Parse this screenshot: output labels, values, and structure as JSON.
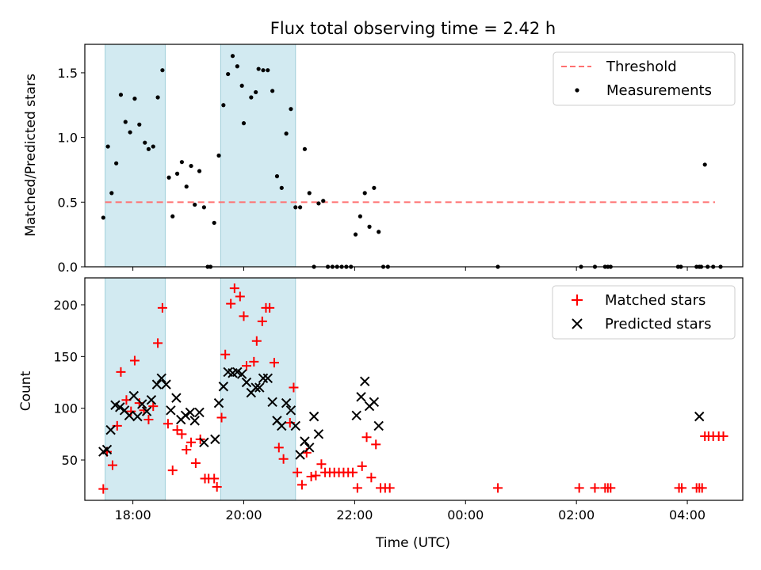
{
  "title": "Flux total observing time = 2.42 h",
  "xlabel": "Time (UTC)",
  "x_ticks": [
    "18:00",
    "20:00",
    "22:00",
    "00:00",
    "02:00",
    "04:00"
  ],
  "colors": {
    "threshold": "#ff7070",
    "measurement": "#000000",
    "matched": "#ff0000",
    "predicted": "#000000",
    "shade": "#add8e6"
  },
  "chart_data": [
    {
      "type": "scatter",
      "ylabel": "Matched/Predicted stars",
      "ylim": [
        0,
        1.72
      ],
      "y_ticks": [
        "0.0",
        "0.5",
        "1.0",
        "1.5"
      ],
      "xlim": [
        "17:08",
        "05:00"
      ],
      "shaded_intervals": [
        [
          "17:30",
          "18:35"
        ],
        [
          "19:35",
          "20:56"
        ]
      ],
      "legend": {
        "placement": "upper right",
        "entries": [
          "Threshold",
          "Measurements"
        ]
      },
      "series": [
        {
          "name": "Threshold",
          "kind": "dashed-line",
          "x": [
            "17:30",
            "04:30"
          ],
          "y": [
            0.5,
            0.5
          ]
        },
        {
          "name": "Measurements",
          "kind": "points",
          "points": [
            [
              "17:28",
              0.38
            ],
            [
              "17:33",
              0.93
            ],
            [
              "17:37",
              0.57
            ],
            [
              "17:42",
              0.8
            ],
            [
              "17:47",
              1.33
            ],
            [
              "17:52",
              1.12
            ],
            [
              "17:57",
              1.04
            ],
            [
              "18:02",
              1.3
            ],
            [
              "18:07",
              1.1
            ],
            [
              "18:13",
              0.96
            ],
            [
              "18:17",
              0.91
            ],
            [
              "18:22",
              0.93
            ],
            [
              "18:27",
              1.31
            ],
            [
              "18:32",
              1.52
            ],
            [
              "18:39",
              0.69
            ],
            [
              "18:43",
              0.39
            ],
            [
              "18:48",
              0.72
            ],
            [
              "18:53",
              0.81
            ],
            [
              "18:58",
              0.62
            ],
            [
              "19:03",
              0.78
            ],
            [
              "19:07",
              0.48
            ],
            [
              "19:12",
              0.74
            ],
            [
              "19:17",
              0.46
            ],
            [
              "19:21",
              0.0
            ],
            [
              "19:24",
              0.0
            ],
            [
              "19:28",
              0.34
            ],
            [
              "19:33",
              0.86
            ],
            [
              "19:38",
              1.25
            ],
            [
              "19:43",
              1.49
            ],
            [
              "19:48",
              1.63
            ],
            [
              "19:53",
              1.55
            ],
            [
              "19:58",
              1.4
            ],
            [
              "20:00",
              1.11
            ],
            [
              "20:08",
              1.31
            ],
            [
              "20:13",
              1.35
            ],
            [
              "20:16",
              1.53
            ],
            [
              "20:21",
              1.52
            ],
            [
              "20:26",
              1.52
            ],
            [
              "20:31",
              1.36
            ],
            [
              "20:36",
              0.7
            ],
            [
              "20:41",
              0.61
            ],
            [
              "20:46",
              1.03
            ],
            [
              "20:51",
              1.22
            ],
            [
              "20:56",
              0.46
            ],
            [
              "21:01",
              0.46
            ],
            [
              "21:06",
              0.91
            ],
            [
              "21:11",
              0.57
            ],
            [
              "21:16",
              0.0
            ],
            [
              "21:21",
              0.49
            ],
            [
              "21:26",
              0.51
            ],
            [
              "21:31",
              0.0
            ],
            [
              "21:36",
              0.0
            ],
            [
              "21:41",
              0.0
            ],
            [
              "21:46",
              0.0
            ],
            [
              "21:51",
              0.0
            ],
            [
              "21:56",
              0.0
            ],
            [
              "22:01",
              0.25
            ],
            [
              "22:06",
              0.39
            ],
            [
              "22:11",
              0.57
            ],
            [
              "22:16",
              0.31
            ],
            [
              "22:21",
              0.61
            ],
            [
              "22:26",
              0.27
            ],
            [
              "22:31",
              0.0
            ],
            [
              "22:36",
              0.0
            ],
            [
              "00:35",
              0.0
            ],
            [
              "02:05",
              0.0
            ],
            [
              "02:20",
              0.0
            ],
            [
              "02:31",
              0.0
            ],
            [
              "02:34",
              0.0
            ],
            [
              "02:37",
              0.0
            ],
            [
              "03:50",
              0.0
            ],
            [
              "03:53",
              0.0
            ],
            [
              "04:10",
              0.0
            ],
            [
              "04:13",
              0.0
            ],
            [
              "04:15",
              0.0
            ],
            [
              "04:19",
              0.79
            ],
            [
              "04:22",
              0.0
            ],
            [
              "04:28",
              0.0
            ],
            [
              "04:36",
              0.0
            ]
          ]
        }
      ]
    },
    {
      "type": "scatter",
      "ylabel": "Count",
      "ylim": [
        11,
        226
      ],
      "y_ticks": [
        "50",
        "100",
        "150",
        "200"
      ],
      "xlim": [
        "17:08",
        "05:00"
      ],
      "shaded_intervals": [
        [
          "17:30",
          "18:35"
        ],
        [
          "19:35",
          "20:56"
        ]
      ],
      "legend": {
        "placement": "upper right",
        "entries": [
          "Matched stars",
          "Predicted stars"
        ]
      },
      "series": [
        {
          "name": "Matched stars",
          "marker": "plus",
          "points": [
            [
              "17:28",
              22
            ],
            [
              "17:32",
              58
            ],
            [
              "17:38",
              45
            ],
            [
              "17:43",
              83
            ],
            [
              "17:47",
              135
            ],
            [
              "17:53",
              108
            ],
            [
              "17:58",
              97
            ],
            [
              "18:02",
              146
            ],
            [
              "18:07",
              105
            ],
            [
              "18:12",
              98
            ],
            [
              "18:17",
              89
            ],
            [
              "18:22",
              102
            ],
            [
              "18:27",
              163
            ],
            [
              "18:32",
              197
            ],
            [
              "18:38",
              85
            ],
            [
              "18:43",
              40
            ],
            [
              "18:48",
              79
            ],
            [
              "18:53",
              75
            ],
            [
              "18:58",
              60
            ],
            [
              "19:03",
              67
            ],
            [
              "19:08",
              47
            ],
            [
              "19:13",
              70
            ],
            [
              "19:18",
              32
            ],
            [
              "19:22",
              32
            ],
            [
              "19:28",
              32
            ],
            [
              "19:31",
              24
            ],
            [
              "19:36",
              91
            ],
            [
              "19:40",
              152
            ],
            [
              "19:46",
              201
            ],
            [
              "19:50",
              216
            ],
            [
              "19:56",
              208
            ],
            [
              "20:00",
              189
            ],
            [
              "20:03",
              141
            ],
            [
              "20:11",
              145
            ],
            [
              "20:14",
              165
            ],
            [
              "20:20",
              184
            ],
            [
              "20:24",
              197
            ],
            [
              "20:28",
              197
            ],
            [
              "20:33",
              144
            ],
            [
              "20:38",
              62
            ],
            [
              "20:43",
              51
            ],
            [
              "20:50",
              86
            ],
            [
              "20:54",
              120
            ],
            [
              "20:58",
              38
            ],
            [
              "21:03",
              26
            ],
            [
              "21:08",
              57
            ],
            [
              "21:13",
              34
            ],
            [
              "21:18",
              35
            ],
            [
              "21:24",
              46
            ],
            [
              "21:28",
              38
            ],
            [
              "21:33",
              38
            ],
            [
              "21:38",
              38
            ],
            [
              "21:43",
              38
            ],
            [
              "21:48",
              38
            ],
            [
              "21:53",
              38
            ],
            [
              "21:58",
              38
            ],
            [
              "22:03",
              23
            ],
            [
              "22:08",
              44
            ],
            [
              "22:13",
              72
            ],
            [
              "22:18",
              33
            ],
            [
              "22:23",
              65
            ],
            [
              "22:28",
              23
            ],
            [
              "22:33",
              23
            ],
            [
              "22:38",
              23
            ],
            [
              "00:35",
              23
            ],
            [
              "02:03",
              23
            ],
            [
              "02:20",
              23
            ],
            [
              "02:31",
              23
            ],
            [
              "02:34",
              23
            ],
            [
              "02:37",
              23
            ],
            [
              "03:51",
              23
            ],
            [
              "03:54",
              23
            ],
            [
              "04:10",
              23
            ],
            [
              "04:13",
              23
            ],
            [
              "04:16",
              23
            ],
            [
              "04:19",
              73
            ],
            [
              "04:23",
              73
            ],
            [
              "04:28",
              73
            ],
            [
              "04:34",
              73
            ],
            [
              "04:39",
              73
            ]
          ]
        },
        {
          "name": "Predicted stars",
          "marker": "x",
          "points": [
            [
              "17:28",
              58
            ],
            [
              "17:32",
              60
            ],
            [
              "17:36",
              79
            ],
            [
              "17:41",
              103
            ],
            [
              "17:46",
              101
            ],
            [
              "17:51",
              98
            ],
            [
              "17:56",
              93
            ],
            [
              "18:01",
              112
            ],
            [
              "18:05",
              92
            ],
            [
              "18:10",
              104
            ],
            [
              "18:15",
              97
            ],
            [
              "18:20",
              108
            ],
            [
              "18:26",
              123
            ],
            [
              "18:31",
              129
            ],
            [
              "18:36",
              123
            ],
            [
              "18:41",
              98
            ],
            [
              "18:47",
              110
            ],
            [
              "18:52",
              89
            ],
            [
              "18:57",
              93
            ],
            [
              "19:02",
              96
            ],
            [
              "19:07",
              88
            ],
            [
              "19:12",
              96
            ],
            [
              "19:17",
              67
            ],
            [
              "19:29",
              70
            ],
            [
              "19:33",
              105
            ],
            [
              "19:38",
              121
            ],
            [
              "19:43",
              135
            ],
            [
              "19:48",
              134
            ],
            [
              "19:53",
              135
            ],
            [
              "19:58",
              133
            ],
            [
              "20:03",
              125
            ],
            [
              "20:08",
              115
            ],
            [
              "20:13",
              120
            ],
            [
              "20:17",
              120
            ],
            [
              "20:21",
              129
            ],
            [
              "20:26",
              129
            ],
            [
              "20:31",
              106
            ],
            [
              "20:36",
              88
            ],
            [
              "20:41",
              83
            ],
            [
              "20:46",
              105
            ],
            [
              "20:51",
              98
            ],
            [
              "20:56",
              83
            ],
            [
              "21:01",
              55
            ],
            [
              "21:06",
              68
            ],
            [
              "21:11",
              62
            ],
            [
              "21:16",
              92
            ],
            [
              "21:21",
              75
            ],
            [
              "22:02",
              93
            ],
            [
              "22:07",
              111
            ],
            [
              "22:11",
              126
            ],
            [
              "22:16",
              102
            ],
            [
              "22:21",
              106
            ],
            [
              "22:26",
              83
            ],
            [
              "04:13",
              92
            ]
          ]
        }
      ]
    }
  ]
}
